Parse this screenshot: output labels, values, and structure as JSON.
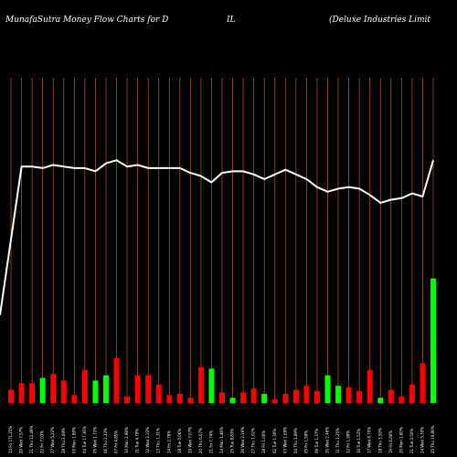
{
  "header": {
    "left": "MunafaSutra  Money Flow  Charts for D",
    "middle": "IL",
    "right": "(Deluxe Industries Limit"
  },
  "chart_data": {
    "type": "bar",
    "title": "MunafaSutra  Money Flow  Charts for DIL",
    "subtitle": "(Deluxe Industries Limit",
    "categories": [
      "14 Fri 171.25%",
      "20 Wed 7.57%",
      "21 Thu 12.49%",
      "22 Fri 7.03%",
      "27 Wed 5.22%",
      "28 Thu 2.69%",
      "03 Mon 1.88%",
      "04 Tue 17.36%",
      "05 Wed 1.72%",
      "06 Thu 2.33%",
      "07 Fri 4.85%",
      "10 Mon 2.98%",
      "11 Tue 4.79%",
      "12 Wed 2.33%",
      "13 Thu 1.31%",
      "14 Fri 2.78%",
      "18 Tue 0.06%",
      "19 Wed 7.07%",
      "20 Thu 0.07%",
      "21 Fri 7.74%",
      "24 Mon 1.46%",
      "25 Tue 8.83%",
      "26 Wed 2.16%",
      "27 Thu 1.02%",
      "28 Fri 1.00%",
      "02 Tue 1.36%",
      "03 Wed 1.69%",
      "04 Thu 1.89%",
      "05 Fri 1.59%",
      "09 Tue 1.37%",
      "10 Wed 2.46%",
      "11 Thu 1.25%",
      "12 Fri 1.99%",
      "16 Tue 1.52%",
      "17 Wed 8.70%",
      "18 Thu 3.50%",
      "19 Fri 6.66%",
      "20 Mon 1.60%",
      "21 Tue 3.50%",
      "24 Wed 5.30%",
      "25 Thu 10.80%"
    ],
    "volumes": [
      10,
      15,
      15,
      19,
      22,
      17,
      6,
      25,
      17,
      21,
      34,
      5,
      21,
      21,
      14,
      6,
      7,
      4,
      27,
      26,
      8,
      4,
      8,
      11,
      7,
      3,
      7,
      10,
      13,
      9,
      21,
      13,
      12,
      9,
      25,
      4,
      10,
      5,
      14,
      30,
      94
    ],
    "colors": [
      "red",
      "red",
      "red",
      "green",
      "red",
      "red",
      "red",
      "red",
      "green",
      "green",
      "red",
      "red",
      "red",
      "red",
      "red",
      "red",
      "red",
      "red",
      "red",
      "green",
      "red",
      "green",
      "red",
      "red",
      "green",
      "red",
      "red",
      "red",
      "red",
      "red",
      "green",
      "green",
      "red",
      "red",
      "red",
      "green",
      "red",
      "red",
      "red",
      "red",
      "green"
    ],
    "price": [
      210,
      304,
      304,
      303,
      305,
      304,
      303,
      303,
      301,
      306,
      308,
      304,
      305,
      303,
      303,
      303,
      303,
      300,
      298,
      294,
      300,
      301,
      301,
      299,
      296,
      299,
      302,
      299,
      296,
      291,
      288,
      290,
      291,
      290,
      286,
      281,
      283,
      284,
      287,
      285,
      308
    ],
    "price_range": [
      160,
      340
    ],
    "volume_range": [
      0,
      100
    ],
    "grid": true,
    "line_color": "#ffffff",
    "grid_color": "#a0522d",
    "bar_colors": {
      "red": "#ff0000",
      "green": "#00ff00"
    },
    "background": "#000000"
  }
}
